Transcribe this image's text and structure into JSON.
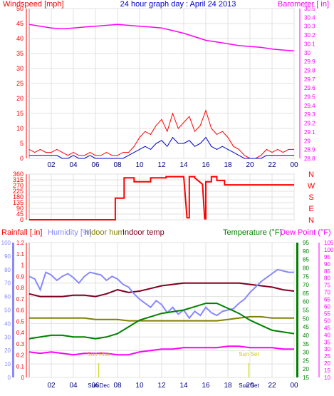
{
  "chart_data": [
    {
      "type": "line",
      "title": "24 hour graph day : April 24 2013",
      "left_axis_label": "Windspeed [mph]",
      "right_axis_label": "Barometer [ in]",
      "x_ticks": [
        "02",
        "04",
        "06",
        "08",
        "10",
        "12",
        "14",
        "16",
        "18",
        "20",
        "22",
        "00"
      ],
      "ylim_left": [
        0,
        50
      ],
      "left_ticks": [
        "0",
        "5",
        "10",
        "15",
        "20",
        "25",
        "30",
        "35",
        "40",
        "45",
        "50"
      ],
      "ylim_right": [
        28.8,
        30.5
      ],
      "right_ticks": [
        "28.8",
        "28.9",
        "29",
        "29.1",
        "29.2",
        "29.3",
        "29.4",
        "29.5",
        "29.6",
        "29.7",
        "29.8",
        "29.9",
        "30",
        "30.1",
        "30.2",
        "30.3",
        "30.4",
        "30.5"
      ],
      "grid": true,
      "colors": {
        "gust": "#ff0000",
        "wind": "#0000cc",
        "barometer": "#ff00ff",
        "left_axis": "#ff0000",
        "right_axis": "#ff00ff"
      },
      "series": [
        {
          "key": "barometer",
          "axis": "right",
          "x": [
            0,
            1,
            2,
            3,
            4,
            5,
            6,
            7,
            8,
            9,
            10,
            11,
            12,
            13,
            14,
            15,
            16,
            17,
            18,
            19,
            20,
            21,
            22,
            23,
            24
          ],
          "values": [
            30.32,
            30.3,
            30.28,
            30.27,
            30.28,
            30.29,
            30.3,
            30.31,
            30.32,
            30.31,
            30.3,
            30.29,
            30.28,
            30.25,
            30.22,
            30.18,
            30.14,
            30.12,
            30.1,
            30.08,
            30.07,
            30.06,
            30.04,
            30.03,
            30.02
          ]
        },
        {
          "key": "gust",
          "axis": "left",
          "x": [
            0,
            0.5,
            1,
            1.5,
            2,
            2.5,
            3,
            3.5,
            4,
            4.5,
            5,
            5.5,
            6,
            6.5,
            7,
            7.5,
            8,
            8.5,
            9,
            9.5,
            10,
            10.5,
            11,
            11.5,
            12,
            12.5,
            13,
            13.5,
            14,
            14.5,
            15,
            15.5,
            16,
            16.5,
            17,
            17.5,
            18,
            18.5,
            19,
            19.5,
            20,
            20.5,
            21,
            21.5,
            22,
            22.5,
            23,
            23.5,
            24
          ],
          "values": [
            3,
            2,
            3,
            2,
            2,
            3,
            2,
            1,
            2,
            1,
            1,
            2,
            1,
            1,
            2,
            1,
            1,
            2,
            2,
            4,
            7,
            9,
            8,
            11,
            13,
            9,
            15,
            10,
            12,
            14,
            9,
            11,
            16,
            10,
            8,
            9,
            7,
            4,
            3,
            1,
            0,
            0,
            1,
            3,
            2,
            3,
            2,
            3,
            3
          ]
        },
        {
          "key": "wind",
          "axis": "left",
          "x": [
            0,
            0.5,
            1,
            1.5,
            2,
            2.5,
            3,
            3.5,
            4,
            4.5,
            5,
            5.5,
            6,
            6.5,
            7,
            7.5,
            8,
            8.5,
            9,
            9.5,
            10,
            10.5,
            11,
            11.5,
            12,
            12.5,
            13,
            13.5,
            14,
            14.5,
            15,
            15.5,
            16,
            16.5,
            17,
            17.5,
            18,
            18.5,
            19,
            19.5,
            20,
            20.5,
            21,
            21.5,
            22,
            22.5,
            23,
            23.5,
            24
          ],
          "values": [
            1,
            1,
            1,
            1,
            1,
            1,
            0,
            0,
            1,
            0,
            0,
            1,
            0,
            0,
            0,
            0,
            0,
            0,
            1,
            2,
            3,
            4,
            3,
            5,
            6,
            4,
            7,
            5,
            5,
            6,
            4,
            5,
            7,
            4,
            3,
            4,
            3,
            2,
            1,
            0,
            0,
            0,
            0,
            1,
            1,
            1,
            1,
            1,
            1
          ]
        }
      ]
    },
    {
      "type": "line",
      "title": "",
      "x_ticks": [
        "02",
        "04",
        "06",
        "08",
        "10",
        "12",
        "14",
        "16",
        "18",
        "20",
        "22",
        "00"
      ],
      "ylim_left": [
        0,
        360
      ],
      "left_ticks": [
        "0",
        "45",
        "90",
        "135",
        "180",
        "225",
        "270",
        "315",
        "360"
      ],
      "right_ticks": [
        "N",
        "E",
        "S",
        "W",
        "N"
      ],
      "grid": true,
      "colors": {
        "direction": "#ff0000"
      },
      "series": [
        {
          "key": "direction",
          "x": [
            0,
            7.8,
            7.8,
            8.6,
            8.6,
            9.5,
            9.5,
            11,
            11,
            12.4,
            12.4,
            14,
            14,
            14.3,
            14.5,
            14.5,
            15,
            15,
            15.7,
            15.9,
            16,
            16,
            16.5,
            16.5,
            17,
            17,
            17.7,
            17.7,
            24
          ],
          "values": [
            0,
            0,
            170,
            170,
            330,
            330,
            300,
            300,
            330,
            330,
            340,
            340,
            340,
            15,
            15,
            340,
            340,
            330,
            280,
            8,
            8,
            300,
            300,
            340,
            340,
            310,
            310,
            275,
            275
          ]
        }
      ]
    },
    {
      "type": "line",
      "title": "",
      "left_axis_labels": [
        "Rainfall [.in]",
        "Humidity [%]",
        "Indoor hum",
        "Indoor temp"
      ],
      "right_axis_labels": [
        "Temperature (°F)",
        "Dew Point (°F)"
      ],
      "x_ticks": [
        "02",
        "04",
        "06",
        "08",
        "10",
        "12",
        "14",
        "16",
        "18",
        "20",
        "22",
        "00"
      ],
      "ylim_humidity": [
        0,
        100
      ],
      "humidity_ticks": [
        "0",
        "10",
        "20",
        "30",
        "40",
        "50",
        "60",
        "70",
        "80",
        "90",
        "100"
      ],
      "ylim_rain": [
        0,
        1.2
      ],
      "rain_ticks": [
        "0",
        "0.1",
        "0.2",
        "0.3",
        "0.4",
        "0.5",
        "0.6",
        "0.7",
        "0.8",
        "0.9",
        "1",
        "1.1",
        "1.2"
      ],
      "ylim_temperature": [
        15,
        95
      ],
      "temperature_ticks": [
        "15",
        "20",
        "25",
        "30",
        "35",
        "40",
        "45",
        "50",
        "55",
        "60",
        "65",
        "70",
        "75",
        "80",
        "85",
        "90",
        "95"
      ],
      "ylim_dewpoint": [
        10,
        105
      ],
      "dewpoint_ticks": [
        "10",
        "15",
        "20",
        "25",
        "30",
        "35",
        "40",
        "45",
        "50",
        "55",
        "60",
        "65",
        "70",
        "75",
        "80",
        "85",
        "90",
        "95",
        "100",
        "105"
      ],
      "annotations": [
        {
          "label": "Sun Rise",
          "x": 6.3
        },
        {
          "label": "Sun Set",
          "x": 19.9
        }
      ],
      "bottom_labels": [
        {
          "text": "Sun Dec",
          "x": 6.3
        },
        {
          "text": "Sun Set",
          "x": 19.9
        }
      ],
      "grid": true,
      "colors": {
        "rainfall": "#ff0000",
        "humidity": "#8888ff",
        "indoor_hum": "#808000",
        "indoor_temp": "#800020",
        "temperature": "#008000",
        "dew_point": "#ff00ff"
      },
      "series": [
        {
          "key": "indoor_temp",
          "axis": "humidity",
          "x": [
            0,
            1,
            2,
            3,
            4,
            5,
            6,
            7,
            8,
            9,
            10,
            11,
            12,
            13,
            14,
            15,
            16,
            17,
            18,
            19,
            20,
            21,
            22,
            23,
            24
          ],
          "values": [
            62,
            60,
            60,
            60,
            61,
            61,
            60,
            62,
            65,
            63,
            64,
            66,
            68,
            69,
            70,
            70,
            70,
            70,
            70,
            70,
            69,
            68,
            67,
            65,
            64
          ]
        },
        {
          "key": "indoor_hum",
          "axis": "humidity",
          "x": [
            0,
            1,
            2,
            3,
            4,
            5,
            6,
            7,
            8,
            9,
            10,
            11,
            12,
            13,
            14,
            15,
            16,
            17,
            18,
            19,
            20,
            21,
            22,
            23,
            24
          ],
          "values": [
            44,
            44,
            44,
            44,
            44,
            44,
            43,
            43,
            43,
            42,
            42,
            42,
            42,
            42,
            42,
            42,
            42,
            42,
            43,
            44,
            45,
            45,
            44,
            44,
            44
          ]
        },
        {
          "key": "humidity",
          "axis": "humidity",
          "x": [
            0,
            0.5,
            1,
            1.5,
            2,
            2.5,
            3,
            3.5,
            4,
            4.5,
            5,
            5.5,
            6,
            6.5,
            7,
            7.5,
            8,
            8.5,
            9,
            9.5,
            10,
            10.5,
            11,
            11.5,
            12,
            12.5,
            13,
            13.5,
            14,
            14.5,
            15,
            15.5,
            16,
            16.5,
            17,
            17.5,
            18,
            18.5,
            19,
            19.5,
            20,
            20.5,
            21,
            21.5,
            22,
            22.5,
            23,
            23.5,
            24
          ],
          "values": [
            75,
            73,
            65,
            78,
            76,
            72,
            75,
            77,
            74,
            70,
            75,
            78,
            77,
            76,
            72,
            75,
            73,
            69,
            67,
            62,
            58,
            55,
            52,
            57,
            54,
            48,
            52,
            47,
            50,
            44,
            49,
            46,
            52,
            48,
            46,
            49,
            50,
            51,
            55,
            58,
            63,
            67,
            71,
            74,
            77,
            80,
            79,
            78,
            78
          ]
        },
        {
          "key": "temperature",
          "axis": "temperature",
          "x": [
            0,
            1,
            2,
            3,
            4,
            5,
            6,
            7,
            8,
            9,
            10,
            11,
            12,
            13,
            14,
            15,
            16,
            17,
            18,
            19,
            20,
            21,
            22,
            23,
            24
          ],
          "values": [
            38,
            39,
            40,
            40,
            39,
            39,
            38,
            39,
            41,
            45,
            49,
            51,
            53,
            54,
            55,
            57,
            59,
            59,
            56,
            53,
            49,
            46,
            43,
            42,
            41
          ]
        },
        {
          "key": "dew_point",
          "axis": "dewpoint",
          "x": [
            0,
            1,
            2,
            3,
            4,
            5,
            6,
            7,
            8,
            9,
            10,
            11,
            12,
            13,
            14,
            15,
            16,
            17,
            18,
            19,
            20,
            21,
            22,
            23,
            24
          ],
          "values": [
            28,
            27,
            28,
            27,
            26,
            27,
            27,
            27,
            26,
            26,
            28,
            29,
            30,
            30,
            31,
            31,
            31,
            31,
            32,
            32,
            31,
            31,
            31,
            30,
            30
          ]
        }
      ]
    }
  ]
}
